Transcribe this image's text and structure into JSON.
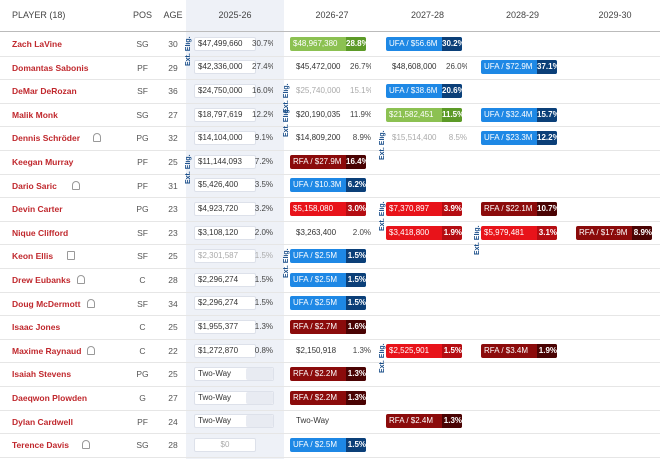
{
  "table": {
    "headers": [
      "PLAYER (18)",
      "POS",
      "AGE",
      "2025-26",
      "2026-27",
      "2027-28",
      "2028-29",
      "2029-30"
    ],
    "rows": [
      {
        "player": "Zach LaVine",
        "pos": "SG",
        "age": 30,
        "years": [
          {
            "text": "$47,499,660",
            "pct": "30.7%",
            "style": "guaranteed",
            "note": "Ext. Elig."
          },
          {
            "text": "$48,967,380",
            "pct": "28.8%",
            "style": "player-option"
          },
          {
            "text": "UFA / $56.6M",
            "pct": "30.2%",
            "style": "ufa"
          },
          null,
          null
        ]
      },
      {
        "player": "Domantas Sabonis",
        "pos": "PF",
        "age": 29,
        "years": [
          {
            "text": "$42,336,000",
            "pct": "27.4%",
            "style": "guaranteed"
          },
          {
            "text": "$45,472,000",
            "pct": "26.7%",
            "style": "guaranteed"
          },
          {
            "text": "$48,608,000",
            "pct": "26.0%",
            "style": "guaranteed"
          },
          {
            "text": "UFA / $72.9M",
            "pct": "37.1%",
            "style": "ufa"
          },
          null
        ]
      },
      {
        "player": "DeMar DeRozan",
        "pos": "SF",
        "age": 36,
        "years": [
          {
            "text": "$24,750,000",
            "pct": "16.0%",
            "style": "guaranteed"
          },
          {
            "text": "$25,740,000",
            "pct": "15.1%",
            "style": "non-guaranteed",
            "note": "Ext. Elig."
          },
          {
            "text": "UFA / $38.6M",
            "pct": "20.6%",
            "style": "ufa"
          },
          null,
          null
        ]
      },
      {
        "player": "Malik Monk",
        "pos": "SG",
        "age": 27,
        "years": [
          {
            "text": "$18,797,619",
            "pct": "12.2%",
            "style": "guaranteed"
          },
          {
            "text": "$20,190,035",
            "pct": "11.9%",
            "style": "guaranteed",
            "note": "Ext. Elig."
          },
          {
            "text": "$21,582,451",
            "pct": "11.5%",
            "style": "player-option"
          },
          {
            "text": "UFA / $32.4M",
            "pct": "15.7%",
            "style": "ufa"
          },
          null
        ]
      },
      {
        "player": "Dennis Schröder",
        "pos": "PG",
        "age": 32,
        "icon": "person",
        "years": [
          {
            "text": "$14,104,000",
            "pct": "9.1%",
            "style": "guaranteed"
          },
          {
            "text": "$14,809,200",
            "pct": "8.9%",
            "style": "guaranteed"
          },
          {
            "text": "$15,514,400",
            "pct": "8.5%",
            "style": "non-guaranteed",
            "note": "Ext. Elig."
          },
          {
            "text": "UFA / $23.3M",
            "pct": "12.2%",
            "style": "ufa"
          },
          null
        ]
      },
      {
        "player": "Keegan Murray",
        "pos": "PF",
        "age": 25,
        "years": [
          {
            "text": "$11,144,093",
            "pct": "7.2%",
            "style": "guaranteed",
            "note": "Ext. Elig."
          },
          {
            "text": "RFA / $27.9M",
            "pct": "16.4%",
            "style": "rfa"
          },
          null,
          null,
          null
        ]
      },
      {
        "player": "Dario Saric",
        "pos": "PF",
        "age": 31,
        "icon": "person",
        "years": [
          {
            "text": "$5,426,400",
            "pct": "3.5%",
            "style": "guaranteed"
          },
          {
            "text": "UFA / $10.3M",
            "pct": "6.2%",
            "style": "ufa"
          },
          null,
          null,
          null
        ]
      },
      {
        "player": "Devin Carter",
        "pos": "PG",
        "age": 23,
        "years": [
          {
            "text": "$4,923,720",
            "pct": "3.2%",
            "style": "guaranteed"
          },
          {
            "text": "$5,158,080",
            "pct": "3.0%",
            "style": "team-option"
          },
          {
            "text": "$7,370,897",
            "pct": "3.9%",
            "style": "team-option",
            "note": "Ext. Elig."
          },
          {
            "text": "RFA / $22.1M",
            "pct": "10.7%",
            "style": "rfa"
          },
          null
        ]
      },
      {
        "player": "Nique Clifford",
        "pos": "SF",
        "age": 23,
        "years": [
          {
            "text": "$3,108,120",
            "pct": "2.0%",
            "style": "guaranteed"
          },
          {
            "text": "$3,263,400",
            "pct": "2.0%",
            "style": "guaranteed"
          },
          {
            "text": "$3,418,800",
            "pct": "1.9%",
            "style": "team-option"
          },
          {
            "text": "$5,979,481",
            "pct": "3.1%",
            "style": "team-option",
            "note": "Ext. Elig."
          },
          {
            "text": "RFA / $17.9M",
            "pct": "8.9%",
            "style": "rfa"
          }
        ]
      },
      {
        "player": "Keon Ellis",
        "pos": "SF",
        "age": 25,
        "icon": "doc",
        "years": [
          {
            "text": "$2,301,587",
            "pct": "1.5%",
            "style": "non-guaranteed"
          },
          {
            "text": "UFA / $2.5M",
            "pct": "1.5%",
            "style": "ufa",
            "note": "Ext. Elig."
          },
          null,
          null,
          null
        ]
      },
      {
        "player": "Drew Eubanks",
        "pos": "C",
        "age": 28,
        "icon": "person",
        "years": [
          {
            "text": "$2,296,274",
            "pct": "1.5%",
            "style": "guaranteed"
          },
          {
            "text": "UFA / $2.5M",
            "pct": "1.5%",
            "style": "ufa"
          },
          null,
          null,
          null
        ]
      },
      {
        "player": "Doug McDermott",
        "pos": "SF",
        "age": 34,
        "icon": "person",
        "years": [
          {
            "text": "$2,296,274",
            "pct": "1.5%",
            "style": "guaranteed"
          },
          {
            "text": "UFA / $2.5M",
            "pct": "1.5%",
            "style": "ufa"
          },
          null,
          null,
          null
        ]
      },
      {
        "player": "Isaac Jones",
        "pos": "C",
        "age": 25,
        "years": [
          {
            "text": "$1,955,377",
            "pct": "1.3%",
            "style": "guaranteed"
          },
          {
            "text": "RFA / $2.7M",
            "pct": "1.6%",
            "style": "rfa"
          },
          null,
          null,
          null
        ]
      },
      {
        "player": "Maxime Raynaud",
        "pos": "C",
        "age": 22,
        "icon": "person",
        "years": [
          {
            "text": "$1,272,870",
            "pct": "0.8%",
            "style": "guaranteed"
          },
          {
            "text": "$2,150,918",
            "pct": "1.3%",
            "style": "guaranteed"
          },
          {
            "text": "$2,525,901",
            "pct": "1.5%",
            "style": "team-option",
            "note": "Ext. Elig."
          },
          {
            "text": "RFA / $3.4M",
            "pct": "1.9%",
            "style": "rfa"
          },
          null
        ]
      },
      {
        "player": "Isaiah Stevens",
        "pos": "PG",
        "age": 25,
        "years": [
          {
            "text": "Two-Way",
            "style": "two-way"
          },
          {
            "text": "RFA / $2.2M",
            "pct": "1.3%",
            "style": "rfa"
          },
          null,
          null,
          null
        ]
      },
      {
        "player": "Daeqwon Plowden",
        "pos": "G",
        "age": 27,
        "years": [
          {
            "text": "Two-Way",
            "style": "two-way"
          },
          {
            "text": "RFA / $2.2M",
            "pct": "1.3%",
            "style": "rfa"
          },
          null,
          null,
          null
        ]
      },
      {
        "player": "Dylan Cardwell",
        "pos": "PF",
        "age": 24,
        "years": [
          {
            "text": "Two-Way",
            "style": "two-way"
          },
          {
            "text": "Two-Way",
            "style": "two-way"
          },
          {
            "text": "RFA / $2.4M",
            "pct": "1.3%",
            "style": "rfa"
          },
          null,
          null
        ]
      },
      {
        "player": "Terence Davis",
        "pos": "SG",
        "age": 28,
        "icon": "person",
        "years": [
          {
            "text": "$0",
            "style": "non-guaranteed"
          },
          {
            "text": "UFA / $2.5M",
            "pct": "1.5%",
            "style": "ufa"
          },
          null,
          null,
          null
        ]
      }
    ]
  }
}
